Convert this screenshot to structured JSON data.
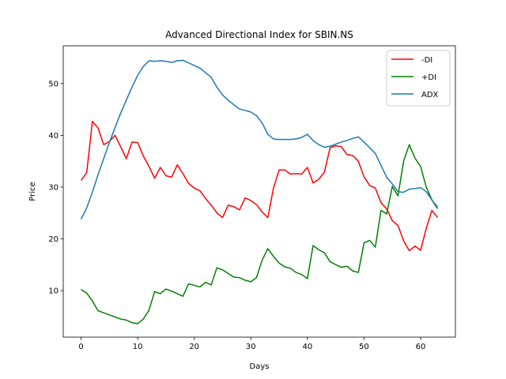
{
  "chart_data": {
    "type": "line",
    "title": "Advanced Directional Index for SBIN.NS",
    "xlabel": "Days",
    "ylabel": "Price",
    "xlim": [
      -3.15,
      66.15
    ],
    "ylim": [
      1.0,
      57.3
    ],
    "xticks": [
      0,
      10,
      20,
      30,
      40,
      50,
      60
    ],
    "yticks": [
      10,
      20,
      30,
      40,
      50
    ],
    "grid": false,
    "legend_position": "top-right",
    "series": [
      {
        "name": "-DI",
        "color": "#ff0000",
        "values": [
          31.3,
          32.8,
          42.7,
          41.4,
          38.2,
          38.8,
          40.0,
          37.8,
          35.5,
          38.7,
          38.6,
          36.0,
          34.0,
          31.7,
          33.8,
          32.2,
          31.9,
          34.3,
          32.6,
          30.7,
          29.8,
          29.3,
          27.8,
          26.5,
          25.0,
          24.1,
          26.5,
          26.2,
          25.6,
          27.9,
          27.4,
          26.6,
          25.2,
          24.1,
          29.8,
          33.3,
          33.3,
          32.5,
          32.6,
          32.5,
          33.8,
          30.8,
          31.5,
          32.9,
          37.6,
          38.0,
          37.8,
          36.3,
          36.1,
          35.0,
          32.0,
          30.3,
          29.8,
          27.0,
          25.8,
          23.5,
          22.6,
          19.6,
          17.7,
          18.6,
          17.8,
          22.0,
          25.5,
          24.1
        ]
      },
      {
        "name": "+DI",
        "color": "#008000",
        "values": [
          10.2,
          9.5,
          8.0,
          6.1,
          5.7,
          5.3,
          4.9,
          4.5,
          4.3,
          3.8,
          3.6,
          4.5,
          6.2,
          9.8,
          9.4,
          10.3,
          9.9,
          9.4,
          8.9,
          11.3,
          11.0,
          10.7,
          11.6,
          11.1,
          14.4,
          14.0,
          13.3,
          12.6,
          12.5,
          12.0,
          11.7,
          12.5,
          15.9,
          18.1,
          16.6,
          15.3,
          14.6,
          14.3,
          13.5,
          13.1,
          12.3,
          18.7,
          17.9,
          17.3,
          15.6,
          15.0,
          14.5,
          14.7,
          13.8,
          13.5,
          19.2,
          19.7,
          18.4,
          25.5,
          24.8,
          30.1,
          28.3,
          35.0,
          38.2,
          35.6,
          34.0,
          30.0,
          27.5,
          26.1
        ]
      },
      {
        "name": "ADX",
        "color": "#1f77b4",
        "values": [
          23.8,
          26.0,
          29.0,
          32.4,
          35.5,
          38.6,
          41.5,
          44.3,
          46.8,
          49.3,
          51.6,
          53.3,
          54.4,
          54.3,
          54.4,
          54.3,
          54.1,
          54.4,
          54.5,
          54.0,
          53.5,
          53.0,
          52.1,
          51.2,
          49.3,
          47.8,
          46.8,
          45.9,
          45.1,
          44.8,
          44.5,
          43.8,
          42.4,
          40.2,
          39.3,
          39.2,
          39.2,
          39.2,
          39.3,
          39.6,
          40.2,
          39.0,
          38.2,
          37.7,
          37.9,
          38.3,
          38.7,
          39.0,
          39.4,
          39.7,
          38.7,
          37.6,
          36.5,
          34.2,
          31.9,
          30.6,
          29.1,
          29.0,
          29.6,
          29.7,
          29.9,
          29.1,
          27.5,
          25.8
        ]
      }
    ]
  }
}
